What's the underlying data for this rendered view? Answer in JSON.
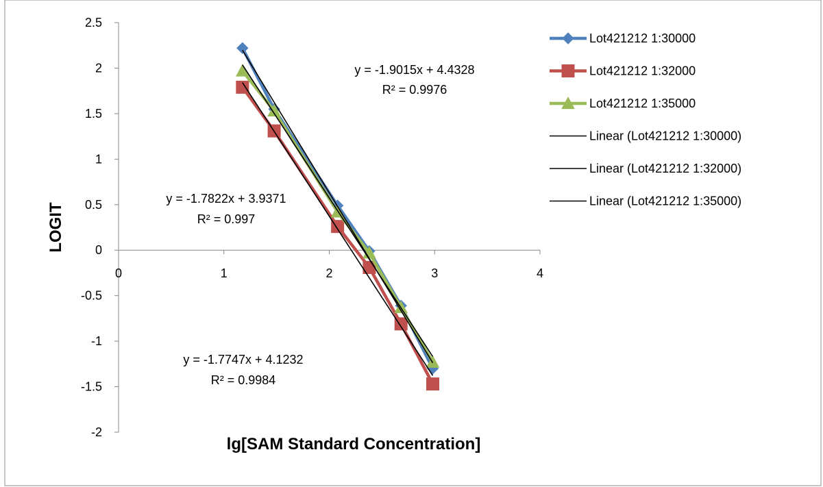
{
  "chart_data": {
    "type": "scatter",
    "title": "",
    "xlabel": "lg[SAM Standard Concentration]",
    "ylabel": "LOGIT",
    "xlim": [
      0,
      4
    ],
    "ylim": [
      -2,
      2.5
    ],
    "x_ticks": [
      "0",
      "1",
      "2",
      "3",
      "4"
    ],
    "y_ticks": [
      "2.5",
      "2",
      "1.5",
      "1",
      "0.5",
      "0",
      "-0.5",
      "-1",
      "-1.5",
      "-2"
    ],
    "grid": false,
    "legend_position": "right",
    "series": [
      {
        "name": "Lot421212 1:30000",
        "color": "#4F81BD",
        "marker": "diamond",
        "x": [
          1.176,
          1.477,
          2.079,
          2.38,
          2.681,
          2.982
        ],
        "y": [
          2.22,
          1.55,
          0.49,
          -0.01,
          -0.61,
          -1.3
        ]
      },
      {
        "name": "Lot421212 1:32000",
        "color": "#C0504D",
        "marker": "square",
        "x": [
          1.176,
          1.477,
          2.079,
          2.38,
          2.681,
          2.982
        ],
        "y": [
          1.79,
          1.31,
          0.26,
          -0.19,
          -0.81,
          -1.47
        ]
      },
      {
        "name": "Lot421212 1:35000",
        "color": "#9BBB59",
        "marker": "triangle",
        "x": [
          1.176,
          1.477,
          2.079,
          2.38,
          2.681,
          2.982
        ],
        "y": [
          1.97,
          1.53,
          0.42,
          -0.03,
          -0.63,
          -1.23
        ]
      }
    ],
    "trendlines": [
      {
        "name": "Linear (Lot421212 1:30000)",
        "slope": -1.9015,
        "intercept": 4.4328,
        "x_range": [
          1.176,
          2.982
        ],
        "color": "#000000"
      },
      {
        "name": "Linear (Lot421212 1:32000)",
        "slope": -1.7822,
        "intercept": 3.9371,
        "x_range": [
          1.176,
          2.982
        ],
        "color": "#000000"
      },
      {
        "name": "Linear (Lot421212 1:35000)",
        "slope": -1.7747,
        "intercept": 4.1232,
        "x_range": [
          1.176,
          2.982
        ],
        "color": "#000000"
      }
    ],
    "annotations": [
      {
        "eq": "y = -1.9015x + 4.4328",
        "r2": "R² = 0.9976"
      },
      {
        "eq": "y = -1.7822x + 3.9371",
        "r2": "R² = 0.997"
      },
      {
        "eq": "y = -1.7747x + 4.1232",
        "r2": "R² = 0.9984"
      }
    ]
  }
}
